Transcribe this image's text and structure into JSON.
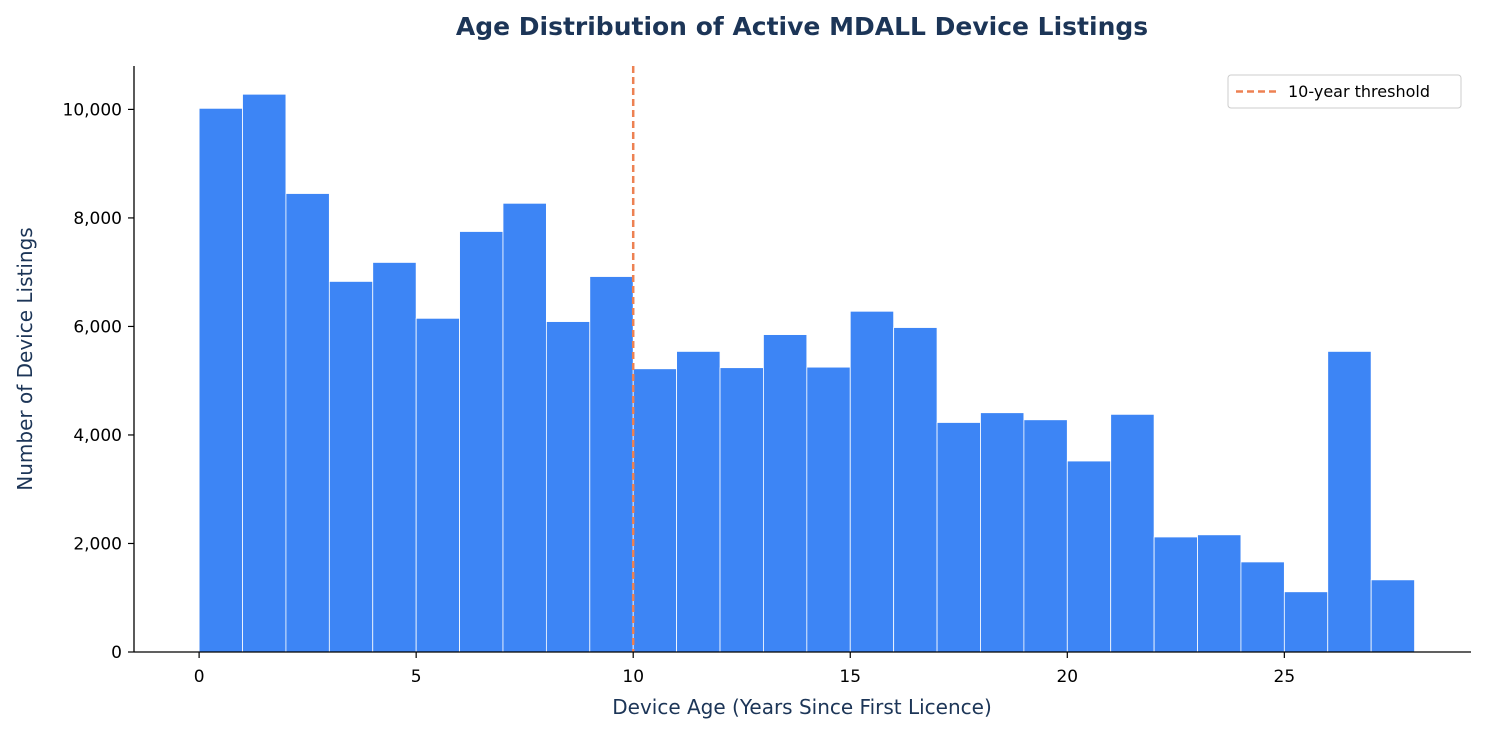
{
  "chart_data": {
    "type": "bar",
    "title": "Age Distribution of Active MDALL Device Listings",
    "xlabel": "Device Age (Years Since First Licence)",
    "ylabel": "Number of Device Listings",
    "bin_edges": [
      0,
      1,
      2,
      3,
      4,
      5,
      6,
      7,
      8,
      9,
      10,
      11,
      12,
      13,
      14,
      15,
      16,
      17,
      18,
      19,
      20,
      21,
      22,
      23,
      24,
      25,
      26,
      27,
      28
    ],
    "values": [
      10020,
      10280,
      8450,
      6830,
      7180,
      6150,
      7750,
      8270,
      6090,
      6920,
      5220,
      5540,
      5240,
      5850,
      5250,
      6280,
      5980,
      4230,
      4410,
      4280,
      3520,
      4380,
      2120,
      2160,
      1660,
      1110,
      5540,
      1330
    ],
    "xlim": [
      -1.5,
      29.3
    ],
    "ylim": [
      0,
      10800
    ],
    "x_ticks": [
      0,
      5,
      10,
      15,
      20,
      25
    ],
    "x_tick_labels": [
      "0",
      "5",
      "10",
      "15",
      "20",
      "25"
    ],
    "y_ticks": [
      0,
      2000,
      4000,
      6000,
      8000,
      10000
    ],
    "y_tick_labels": [
      "0",
      "2,000",
      "4,000",
      "6,000",
      "8,000",
      "10,000"
    ],
    "threshold": {
      "x": 10,
      "label": "10-year threshold"
    },
    "legend_position": "top-right",
    "grid": false,
    "colors": {
      "bar": "#3d85f5",
      "bar_edge": "#ffffff",
      "threshold": "#ed8152",
      "title": "#1c3557",
      "axis_label": "#1c3557",
      "axis": "#000000"
    }
  }
}
